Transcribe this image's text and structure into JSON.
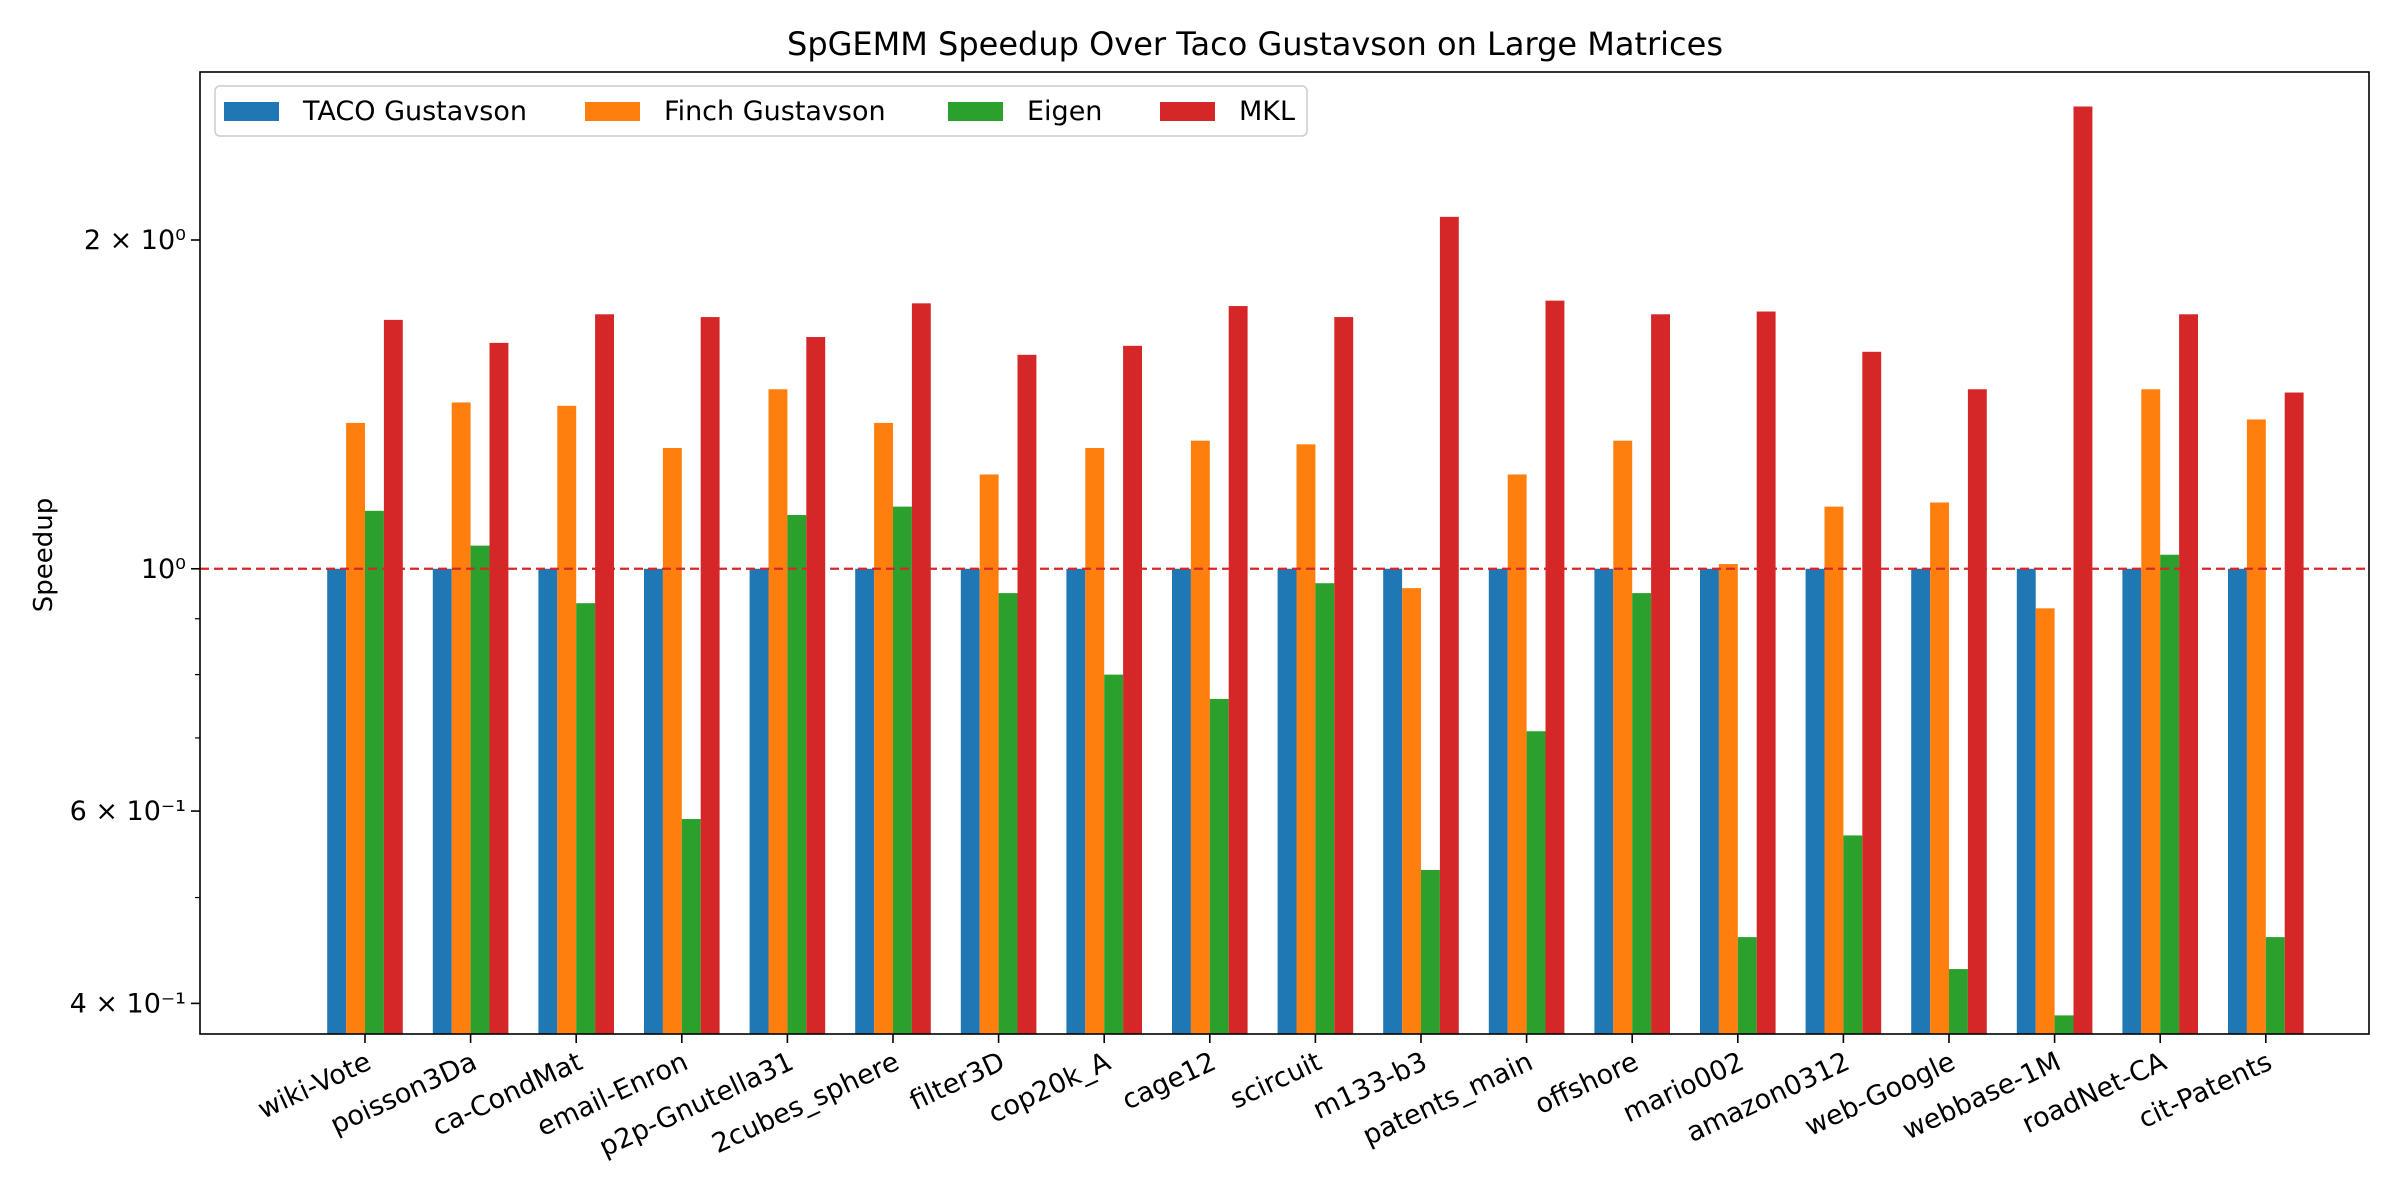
{
  "chart_data": {
    "type": "bar",
    "title": "SpGEMM Speedup Over Taco Gustavson on Large Matrices",
    "xlabel": "",
    "ylabel": "Speedup",
    "yscale": "log",
    "ylim": [
      0.375,
      2.85
    ],
    "yticks": [
      {
        "value": 0.4,
        "label": "4 × 10⁻¹"
      },
      {
        "value": 0.6,
        "label": "6 × 10⁻¹"
      },
      {
        "value": 1.0,
        "label": "10⁰"
      },
      {
        "value": 2.0,
        "label": "2 × 10⁰"
      }
    ],
    "minor_yticks": [
      0.5,
      0.7,
      0.8,
      0.9
    ],
    "reference_line": {
      "value": 1.0,
      "style": "dashed",
      "color": "#d62728"
    },
    "legend": {
      "placement": "top-left",
      "columns": 4
    },
    "categories": [
      "wiki-Vote",
      "poisson3Da",
      "ca-CondMat",
      "email-Enron",
      "p2p-Gnutella31",
      "2cubes_sphere",
      "filter3D",
      "cop20k_A",
      "cage12",
      "scircuit",
      "m133-b3",
      "patents_main",
      "offshore",
      "mario002",
      "amazon0312",
      "web-Google",
      "webbase-1M",
      "roadNet-CA",
      "cit-Patents"
    ],
    "series": [
      {
        "name": "TACO Gustavson",
        "color": "#1f77b4",
        "values": [
          1.0,
          1.0,
          1.0,
          1.0,
          1.0,
          1.0,
          1.0,
          1.0,
          1.0,
          1.0,
          1.0,
          1.0,
          1.0,
          1.0,
          1.0,
          1.0,
          1.0,
          1.0,
          1.0
        ]
      },
      {
        "name": "Finch Gustavson",
        "color": "#ff7f0e",
        "values": [
          1.36,
          1.42,
          1.41,
          1.29,
          1.46,
          1.36,
          1.22,
          1.29,
          1.31,
          1.3,
          0.96,
          1.22,
          1.31,
          1.01,
          1.14,
          1.15,
          0.92,
          1.46,
          1.37
        ]
      },
      {
        "name": "Eigen",
        "color": "#2ca02c",
        "values": [
          1.13,
          1.05,
          0.93,
          0.59,
          1.12,
          1.14,
          0.95,
          0.8,
          0.76,
          0.97,
          0.53,
          0.71,
          0.95,
          0.46,
          0.57,
          0.43,
          0.39,
          1.03,
          0.46
        ]
      },
      {
        "name": "MKL",
        "color": "#d62728",
        "values": [
          1.69,
          1.61,
          1.71,
          1.7,
          1.63,
          1.75,
          1.57,
          1.6,
          1.74,
          1.7,
          2.1,
          1.76,
          1.71,
          1.72,
          1.58,
          1.46,
          2.65,
          1.71,
          1.45
        ]
      }
    ]
  }
}
